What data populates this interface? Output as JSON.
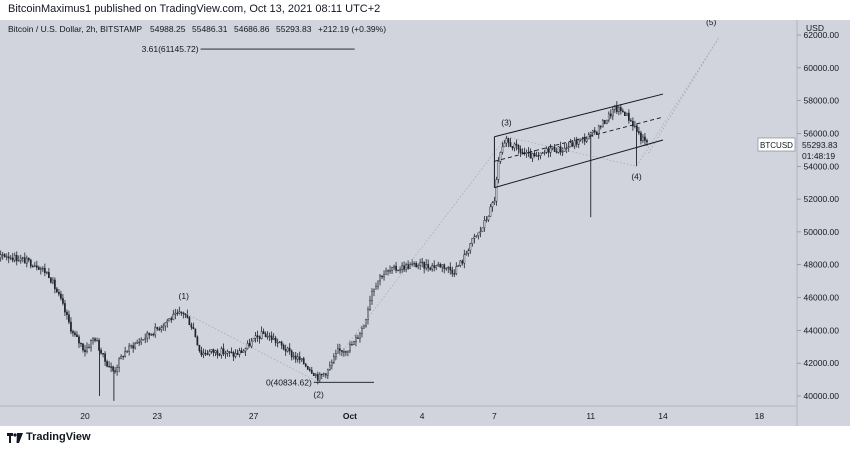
{
  "header": {
    "publish_text": "BitcoinMaximus1 published on TradingView.com, Oct 13, 2021 08:11 UTC+2"
  },
  "legend": {
    "symbol": "Bitcoin / U.S. Dollar, 2h, BITSTAMP",
    "open": "54988.25",
    "high": "55486.31",
    "low": "54686.86",
    "close": "55293.83",
    "change": "+212.19 (+0.39%)"
  },
  "price_axis": {
    "currency": "USD"
  },
  "price_tag": {
    "symbol": "BTCUSD",
    "price": "55293.83",
    "countdown": "01:48:19"
  },
  "footer": {
    "brand": "TradingView"
  },
  "colors": {
    "background": "#d1d4dc",
    "candle": "#1e222d",
    "accent_line": "#787b86"
  },
  "chart_data": {
    "type": "candlestick",
    "x_axis": {
      "tick_labels": [
        "20",
        "23",
        "27",
        "Oct",
        "4",
        "7",
        "11",
        "14",
        "18"
      ],
      "tick_days": [
        20,
        23,
        27,
        31,
        34,
        37,
        41,
        44,
        48
      ]
    },
    "y_axis": {
      "ylim": [
        39500,
        63000
      ],
      "tick_values": [
        40000,
        42000,
        44000,
        46000,
        48000,
        50000,
        52000,
        54000,
        56000,
        58000,
        60000,
        62000
      ],
      "tick_labels": [
        "40000.00",
        "42000.00",
        "44000.00",
        "46000.00",
        "48000.00",
        "50000.00",
        "52000.00",
        "54000.00",
        "56000.00",
        "58000.00",
        "60000.00",
        "62000.00"
      ]
    },
    "price_path": [
      [
        15.0,
        47800
      ],
      [
        15.5,
        48000
      ],
      [
        16.0,
        47700
      ],
      [
        16.6,
        48600
      ],
      [
        17.2,
        48400
      ],
      [
        18.0,
        48000
      ],
      [
        18.5,
        47400
      ],
      [
        19.0,
        45800
      ],
      [
        19.5,
        43800
      ],
      [
        20.0,
        42800
      ],
      [
        20.4,
        43600
      ],
      [
        20.8,
        42200
      ],
      [
        21.2,
        41500
      ],
      [
        21.6,
        42600
      ],
      [
        22.0,
        43100
      ],
      [
        22.5,
        43600
      ],
      [
        23.0,
        44100
      ],
      [
        23.5,
        44700
      ],
      [
        24.1,
        45100
      ],
      [
        24.5,
        44100
      ],
      [
        24.8,
        42600
      ],
      [
        25.2,
        42700
      ],
      [
        25.7,
        42700
      ],
      [
        26.2,
        42500
      ],
      [
        26.6,
        42800
      ],
      [
        27.0,
        43400
      ],
      [
        27.4,
        43800
      ],
      [
        27.8,
        43500
      ],
      [
        28.2,
        43000
      ],
      [
        28.6,
        42500
      ],
      [
        29.0,
        42100
      ],
      [
        29.4,
        41600
      ],
      [
        29.7,
        41100
      ],
      [
        30.1,
        41600
      ],
      [
        30.5,
        42700
      ],
      [
        30.9,
        42900
      ],
      [
        31.2,
        43300
      ],
      [
        31.6,
        44400
      ],
      [
        31.9,
        46400
      ],
      [
        32.3,
        47400
      ],
      [
        32.8,
        47700
      ],
      [
        33.3,
        47900
      ],
      [
        33.8,
        48000
      ],
      [
        34.3,
        47900
      ],
      [
        34.8,
        48000
      ],
      [
        35.3,
        47600
      ],
      [
        35.7,
        48300
      ],
      [
        36.0,
        49300
      ],
      [
        36.4,
        50000
      ],
      [
        36.7,
        50900
      ],
      [
        37.0,
        52000
      ],
      [
        37.2,
        54600
      ],
      [
        37.5,
        55500
      ],
      [
        37.9,
        55100
      ],
      [
        38.3,
        54700
      ],
      [
        38.8,
        54500
      ],
      [
        39.3,
        55100
      ],
      [
        39.8,
        55000
      ],
      [
        40.3,
        55400
      ],
      [
        40.8,
        55700
      ],
      [
        41.2,
        56100
      ],
      [
        41.6,
        56800
      ],
      [
        42.0,
        57500
      ],
      [
        42.4,
        57300
      ],
      [
        42.8,
        56500
      ],
      [
        43.1,
        55700
      ],
      [
        43.4,
        55300
      ]
    ],
    "spikes": [
      {
        "day": 20.6,
        "low": 40000
      },
      {
        "day": 21.2,
        "low": 39700
      },
      {
        "day": 41.0,
        "low": 50900
      },
      {
        "day": 42.9,
        "low": 54000
      }
    ],
    "wave_labels": [
      {
        "text": "(1)",
        "day": 24.1,
        "price": 45900
      },
      {
        "text": "(2)",
        "day": 29.7,
        "price": 39900
      },
      {
        "text": "(3)",
        "day": 37.5,
        "price": 56500
      },
      {
        "text": "(4)",
        "day": 42.9,
        "price": 53200
      },
      {
        "text": "(5)",
        "day": 46.0,
        "price": 62600
      }
    ],
    "fib_levels": [
      {
        "text": "3.61(61145.72)",
        "price": 61145.72,
        "day_start": 24.8,
        "day_end": 31.2
      },
      {
        "text": "0(40834.62)",
        "price": 40834.62,
        "day_start": 29.5,
        "day_end": 32.0
      }
    ],
    "channel": {
      "upper": [
        [
          37.0,
          55800
        ],
        [
          44.0,
          58400
        ]
      ],
      "middle": [
        [
          37.0,
          54300
        ],
        [
          44.0,
          57000
        ]
      ],
      "lower": [
        [
          37.0,
          52700
        ],
        [
          44.0,
          55600
        ]
      ]
    },
    "projection": [
      [
        43.4,
        54800
      ],
      [
        44.3,
        57000
      ],
      [
        46.3,
        61800
      ]
    ],
    "wave_path": [
      [
        24.1,
        45100
      ],
      [
        29.7,
        40834.62
      ],
      [
        37.5,
        55800
      ],
      [
        42.9,
        54000
      ],
      [
        46.3,
        61800
      ]
    ]
  }
}
